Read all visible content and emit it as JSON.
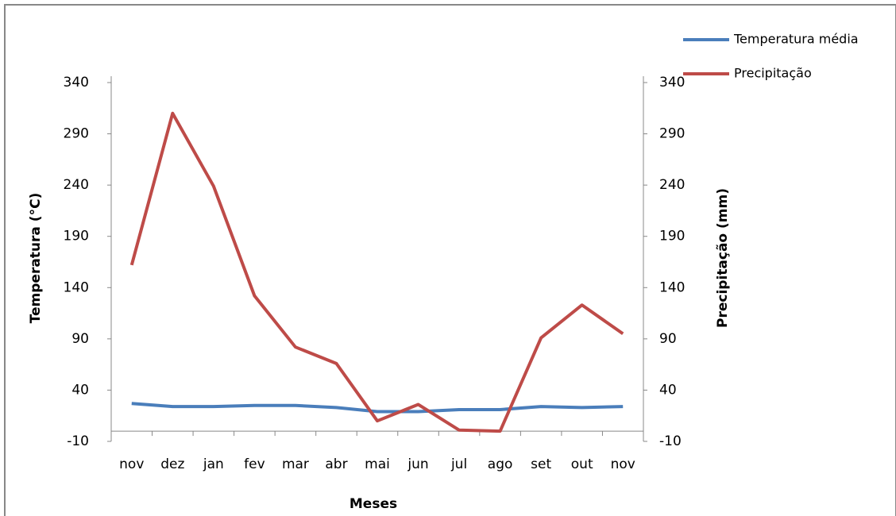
{
  "chart_data": {
    "type": "line",
    "x_label": "Meses",
    "y_label": "Temperatura (°C)",
    "y2_label": "Precipitação (mm)",
    "categories": [
      "nov",
      "dez",
      "jan",
      "fev",
      "mar",
      "abr",
      "mai",
      "jun",
      "jul",
      "ago",
      "set",
      "out",
      "nov"
    ],
    "series": [
      {
        "name": "Temperatura média",
        "color": "#4a7ebb",
        "values": [
          27,
          24,
          24,
          25,
          25,
          23,
          19,
          19,
          21,
          21,
          24,
          23,
          24
        ]
      },
      {
        "name": "Precipitação",
        "color": "#be4b48",
        "axis": "y2",
        "values": [
          162,
          310,
          239,
          132,
          82,
          66,
          10,
          26,
          1,
          0,
          91,
          123,
          95
        ]
      }
    ],
    "ylim": [
      -10,
      340
    ],
    "yticks": [
      -10,
      40,
      90,
      140,
      190,
      240,
      290,
      340
    ],
    "y2lim": [
      -10,
      340
    ],
    "y2ticks": [
      -10,
      40,
      90,
      140,
      190,
      240,
      290,
      340
    ],
    "grid": false,
    "legend": "top-right"
  }
}
